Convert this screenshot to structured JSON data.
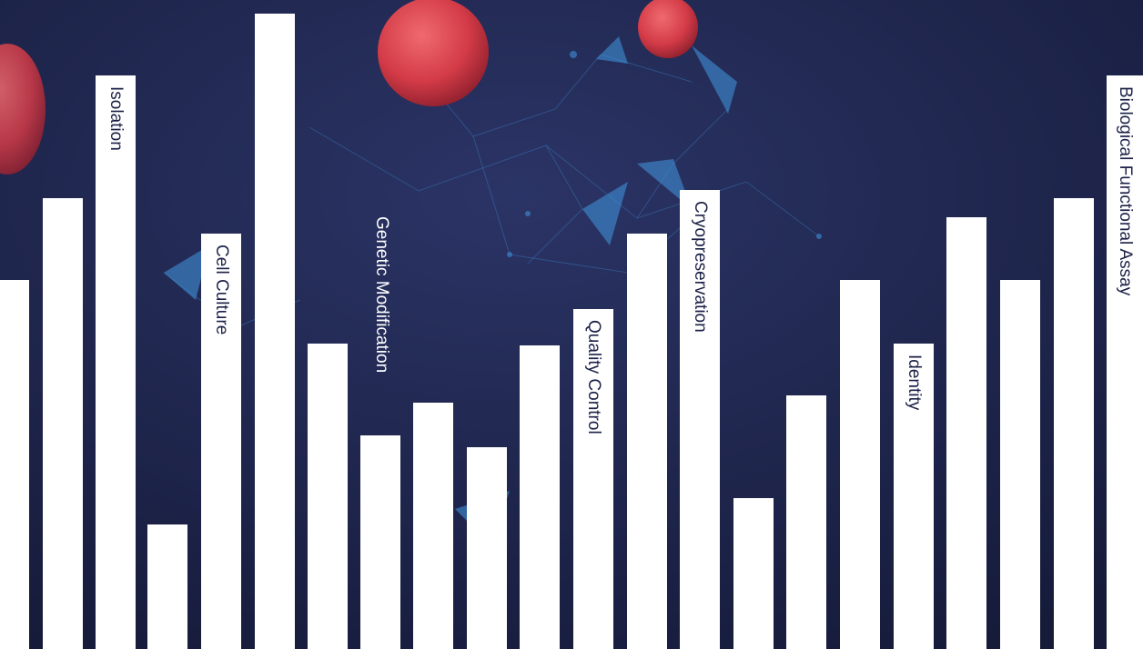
{
  "colors": {
    "background": "#1c2247",
    "bar": "#ffffff",
    "cell": "#e0444f",
    "network": "#3f8fd6"
  },
  "labels": {
    "isolation": "Isolation",
    "cell_culture": "Cell Culture",
    "genetic_modification": "Genetic Modification",
    "quality_control": "Quality Control",
    "cryopreservation": "Cryopreservation",
    "identity": "Identity",
    "biological_functional_assay": "Biological Functional Assay"
  }
}
